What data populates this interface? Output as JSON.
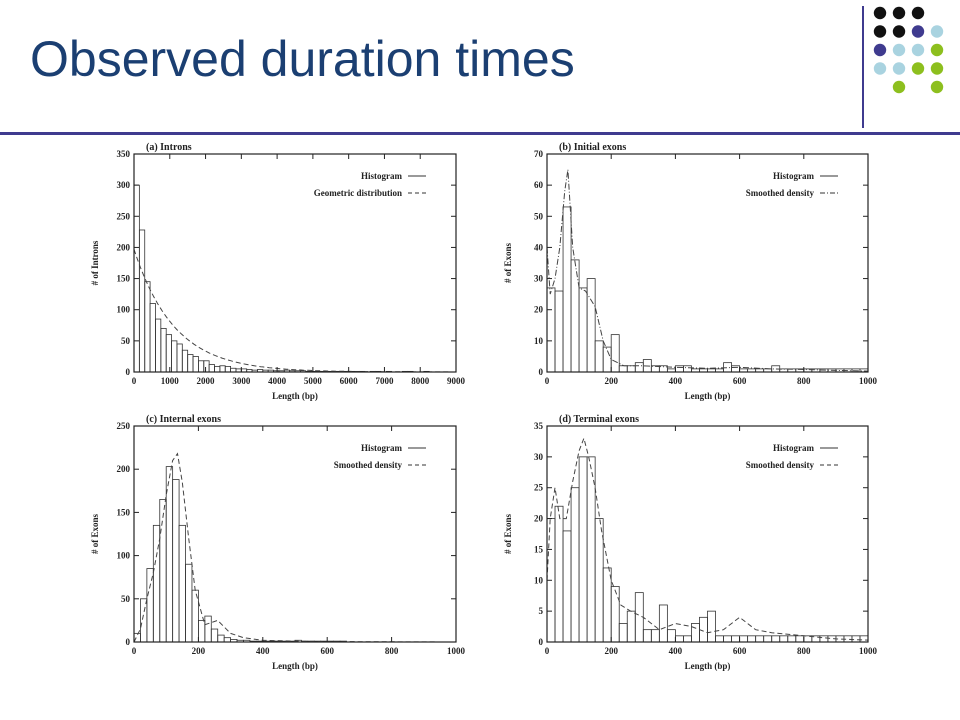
{
  "slide": {
    "title": "Observed duration times",
    "colors": {
      "title": "#1b3f72",
      "rule": "#3f3b8f",
      "black": "#111111",
      "purple": "#3f3b8f",
      "lightblue": "#a9d3e0",
      "green": "#8dbf1e"
    },
    "decor_dots": [
      [
        "black",
        "black",
        "black",
        ""
      ],
      [
        "black",
        "black",
        "purple",
        "lightblue"
      ],
      [
        "purple",
        "lightblue",
        "lightblue",
        "green"
      ],
      [
        "lightblue",
        "lightblue",
        "green",
        "green"
      ],
      [
        "",
        "green",
        "",
        "green"
      ]
    ]
  },
  "chart_data": [
    {
      "type": "bar",
      "title": "(a) Introns",
      "xlabel": "Length (bp)",
      "ylabel": "# of Introns",
      "xlim": [
        0,
        9000
      ],
      "ylim": [
        0,
        350
      ],
      "xticks": [
        0,
        1000,
        2000,
        3000,
        4000,
        5000,
        6000,
        7000,
        8000,
        9000
      ],
      "yticks": [
        0,
        50,
        100,
        150,
        200,
        250,
        300,
        350
      ],
      "bin_width": 150,
      "values": [
        300,
        228,
        145,
        110,
        85,
        70,
        60,
        50,
        45,
        35,
        28,
        25,
        18,
        18,
        12,
        9,
        10,
        9,
        6,
        5,
        5,
        4,
        3,
        4,
        3,
        3,
        2,
        2,
        3,
        2,
        2,
        2,
        1,
        1,
        1,
        1,
        1,
        1,
        1,
        1,
        1,
        1,
        1,
        0,
        1,
        1,
        0,
        1,
        0,
        0,
        1,
        1,
        0,
        0,
        1,
        0,
        0,
        0,
        0,
        0
      ],
      "curve": {
        "kind": "geometric",
        "y0": 197,
        "decay_bp": 1130
      },
      "legend": [
        {
          "label": "Histogram",
          "style": "solid"
        },
        {
          "label": "Geometric distribution",
          "style": "dashed"
        }
      ],
      "legend_position": "top-right"
    },
    {
      "type": "bar",
      "title": "(b) Initial exons",
      "xlabel": "Length (bp)",
      "ylabel": "# of Exons",
      "xlim": [
        0,
        1000
      ],
      "ylim": [
        0,
        70
      ],
      "xticks": [
        0,
        200,
        400,
        600,
        800,
        1000
      ],
      "yticks": [
        0,
        10,
        20,
        30,
        40,
        50,
        60,
        70
      ],
      "bin_width": 25,
      "values": [
        27,
        26,
        53,
        36,
        27,
        30,
        10,
        8,
        12,
        2,
        2,
        3,
        4,
        2,
        2,
        1,
        2,
        2,
        1,
        1,
        1,
        1,
        3,
        2,
        1,
        1,
        1,
        1,
        2,
        1,
        1,
        1,
        1,
        1,
        1,
        1,
        1,
        1,
        1,
        1
      ],
      "curve": {
        "kind": "smoothed",
        "x": [
          0,
          10,
          25,
          40,
          55,
          65,
          80,
          100,
          120,
          150,
          175,
          200,
          240,
          300,
          400,
          500,
          600,
          700,
          800,
          900,
          1000
        ],
        "y": [
          40,
          25,
          30,
          40,
          58,
          65,
          40,
          27,
          26,
          21,
          10,
          4,
          2,
          2,
          1.5,
          1.2,
          1.5,
          1,
          0.8,
          0.5,
          0.3
        ]
      },
      "legend": [
        {
          "label": "Histogram",
          "style": "solid"
        },
        {
          "label": "Smoothed density",
          "style": "dashdot"
        }
      ],
      "legend_position": "top-right"
    },
    {
      "type": "bar",
      "title": "(c) Internal exons",
      "xlabel": "Length (bp)",
      "ylabel": "# of Exons",
      "xlim": [
        0,
        1000
      ],
      "ylim": [
        0,
        250
      ],
      "xticks": [
        0,
        200,
        400,
        600,
        800,
        1000
      ],
      "yticks": [
        0,
        50,
        100,
        150,
        200,
        250
      ],
      "bin_width": 20,
      "values": [
        10,
        50,
        85,
        135,
        165,
        203,
        188,
        135,
        90,
        60,
        25,
        30,
        15,
        8,
        5,
        3,
        2,
        2,
        1,
        1,
        1,
        1,
        1,
        1,
        1,
        2,
        1,
        1,
        1,
        1,
        1,
        1,
        1,
        0,
        0,
        0,
        0,
        0,
        0,
        0,
        0,
        0,
        0,
        0,
        0,
        0,
        0,
        0,
        0,
        0
      ],
      "curve": {
        "kind": "smoothed",
        "x": [
          0,
          20,
          40,
          60,
          80,
          100,
          120,
          135,
          150,
          170,
          190,
          220,
          260,
          300,
          340,
          400,
          500,
          600,
          700,
          800,
          900,
          1000
        ],
        "y": [
          0,
          15,
          50,
          80,
          120,
          170,
          210,
          218,
          185,
          120,
          60,
          20,
          25,
          10,
          5,
          2,
          1,
          0.5,
          0.3,
          0.2,
          0.1,
          0
        ]
      },
      "legend": [
        {
          "label": "Histogram",
          "style": "solid"
        },
        {
          "label": "Smoothed density",
          "style": "dashed"
        }
      ],
      "legend_position": "top-right"
    },
    {
      "type": "bar",
      "title": "(d) Terminal exons",
      "xlabel": "Length (bp)",
      "ylabel": "# of Exons",
      "xlim": [
        0,
        1000
      ],
      "ylim": [
        0,
        35
      ],
      "xticks": [
        0,
        200,
        400,
        600,
        800,
        1000
      ],
      "yticks": [
        0,
        5,
        10,
        15,
        20,
        25,
        30,
        35
      ],
      "bin_width": 25,
      "values": [
        20,
        22,
        18,
        25,
        30,
        30,
        20,
        12,
        9,
        3,
        5,
        8,
        2,
        2,
        6,
        2,
        1,
        1,
        3,
        4,
        5,
        1,
        1,
        1,
        1,
        1,
        1,
        1,
        1,
        1,
        1,
        1,
        1,
        1,
        1,
        1,
        1,
        1,
        1,
        1
      ],
      "curve": {
        "kind": "smoothed",
        "x": [
          0,
          10,
          25,
          40,
          60,
          80,
          100,
          115,
          130,
          150,
          170,
          200,
          230,
          260,
          300,
          350,
          400,
          450,
          500,
          550,
          600,
          650,
          700,
          800,
          900,
          1000
        ],
        "y": [
          10,
          20,
          25,
          20,
          20,
          26,
          31,
          33,
          30,
          25,
          18,
          10,
          6,
          5,
          4,
          2,
          3,
          2.5,
          1.5,
          2,
          4,
          2,
          1.5,
          1,
          0.5,
          0.3
        ]
      },
      "legend": [
        {
          "label": "Histogram",
          "style": "solid"
        },
        {
          "label": "Smoothed density",
          "style": "dashed"
        }
      ],
      "legend_position": "top-right"
    }
  ]
}
